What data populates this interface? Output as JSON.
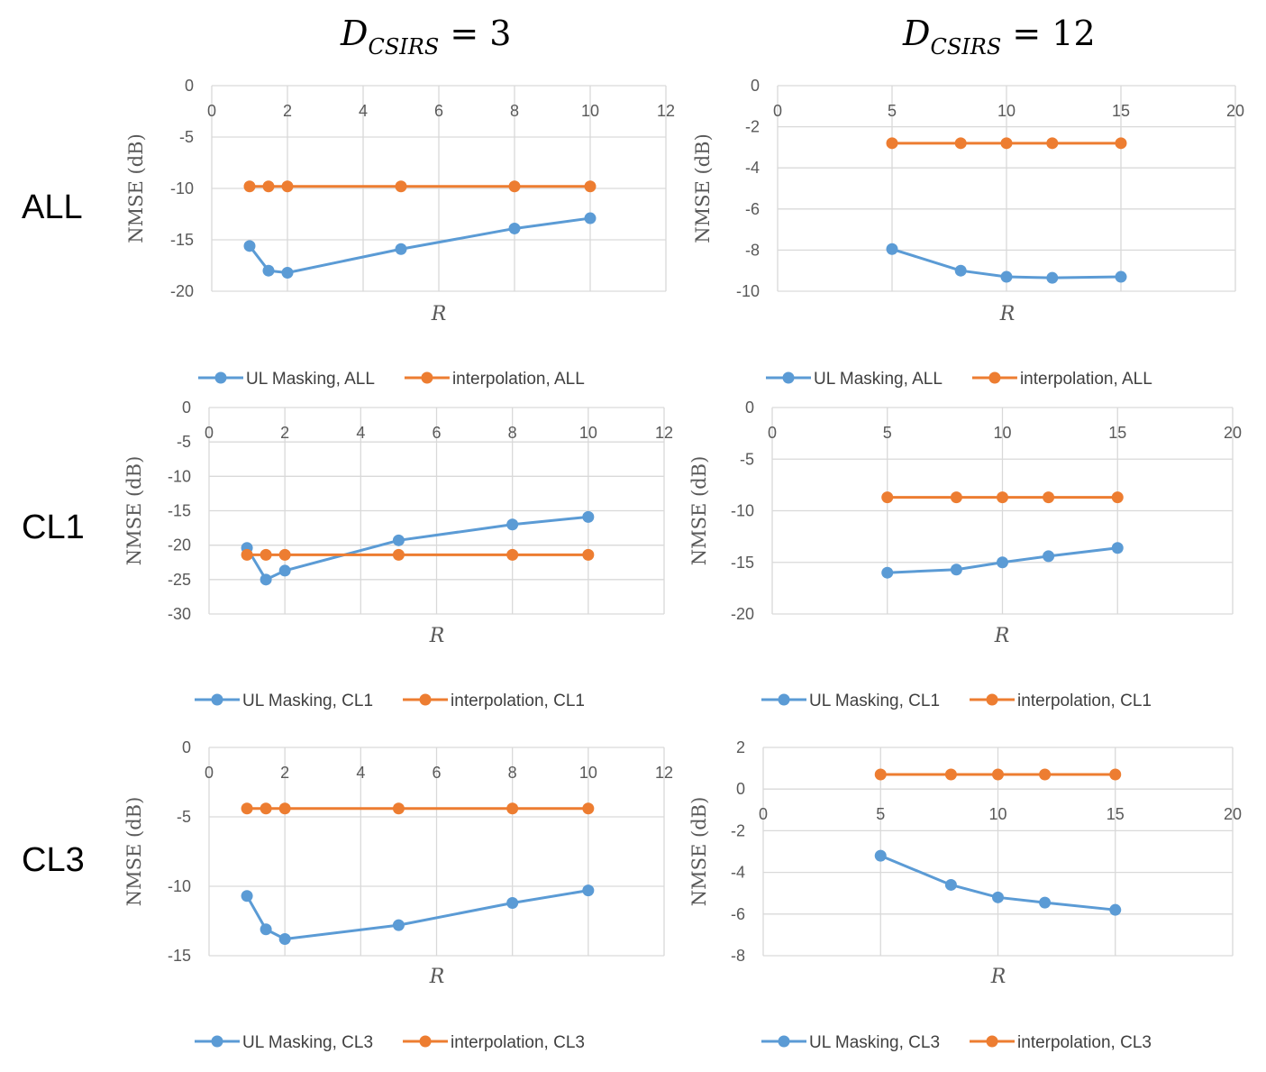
{
  "column_titles": [
    {
      "main": "D",
      "sub": "CSIRS",
      "rest": " = 3"
    },
    {
      "main": "D",
      "sub": "CSIRS",
      "rest": " = 12"
    }
  ],
  "row_labels": [
    "ALL",
    "CL1",
    "CL3"
  ],
  "colors": {
    "ul_masking": "#5B9BD5",
    "interpolation": "#ED7D31",
    "grid": "#D9D9D9",
    "tick": "#595959"
  },
  "chart_data": [
    {
      "id": "all-d3",
      "type": "line",
      "title": "",
      "xlabel": "R",
      "ylabel": "NMSE (dB)",
      "xlim": [
        0,
        12
      ],
      "ylim": [
        -20,
        0
      ],
      "xticks": [
        0,
        2,
        4,
        6,
        8,
        10,
        12
      ],
      "yticks": [
        0,
        -5,
        -10,
        -15,
        -20
      ],
      "series": [
        {
          "name": "UL Masking,  ALL",
          "color": "#5B9BD5",
          "x": [
            1,
            1.5,
            2,
            5,
            8,
            10
          ],
          "y": [
            -15.6,
            -18.0,
            -18.2,
            -15.9,
            -13.9,
            -12.9
          ]
        },
        {
          "name": "interpolation,  ALL",
          "color": "#ED7D31",
          "x": [
            1,
            1.5,
            2,
            5,
            8,
            10
          ],
          "y": [
            -9.8,
            -9.8,
            -9.8,
            -9.8,
            -9.8,
            -9.8
          ]
        }
      ]
    },
    {
      "id": "all-d12",
      "type": "line",
      "title": "",
      "xlabel": "R",
      "ylabel": "NMSE (dB)",
      "xlim": [
        0,
        20
      ],
      "ylim": [
        -10,
        0
      ],
      "xticks": [
        0,
        5,
        10,
        15,
        20
      ],
      "yticks": [
        0,
        -2,
        -4,
        -6,
        -8,
        -10
      ],
      "series": [
        {
          "name": "UL Masking,  ALL",
          "color": "#5B9BD5",
          "x": [
            5,
            8,
            10,
            12,
            15
          ],
          "y": [
            -7.95,
            -9.0,
            -9.3,
            -9.35,
            -9.3
          ]
        },
        {
          "name": "interpolation,  ALL",
          "color": "#ED7D31",
          "x": [
            5,
            8,
            10,
            12,
            15
          ],
          "y": [
            -2.8,
            -2.8,
            -2.8,
            -2.8,
            -2.8
          ]
        }
      ]
    },
    {
      "id": "cl1-d3",
      "type": "line",
      "title": "",
      "xlabel": "R",
      "ylabel": "NMSE (dB)",
      "xlim": [
        0,
        12
      ],
      "ylim": [
        -30,
        0
      ],
      "xticks": [
        0,
        2,
        4,
        6,
        8,
        10,
        12
      ],
      "yticks": [
        0,
        -5,
        -10,
        -15,
        -20,
        -25,
        -30
      ],
      "series": [
        {
          "name": "UL Masking,  CL1",
          "color": "#5B9BD5",
          "x": [
            1,
            1.5,
            2,
            5,
            8,
            10
          ],
          "y": [
            -20.4,
            -25.0,
            -23.7,
            -19.3,
            -17.0,
            -15.9
          ]
        },
        {
          "name": "interpolation,  CL1",
          "color": "#ED7D31",
          "x": [
            1,
            1.5,
            2,
            5,
            8,
            10
          ],
          "y": [
            -21.4,
            -21.4,
            -21.4,
            -21.4,
            -21.4,
            -21.4
          ]
        }
      ]
    },
    {
      "id": "cl1-d12",
      "type": "line",
      "title": "",
      "xlabel": "R",
      "ylabel": "NMSE (dB)",
      "xlim": [
        0,
        20
      ],
      "ylim": [
        -20,
        0
      ],
      "xticks": [
        0,
        5,
        10,
        15,
        20
      ],
      "yticks": [
        0,
        -5,
        -10,
        -15,
        -20
      ],
      "series": [
        {
          "name": "UL Masking,  CL1",
          "color": "#5B9BD5",
          "x": [
            5,
            8,
            10,
            12,
            15
          ],
          "y": [
            -16.0,
            -15.7,
            -15.0,
            -14.4,
            -13.6
          ]
        },
        {
          "name": "interpolation,  CL1",
          "color": "#ED7D31",
          "x": [
            5,
            8,
            10,
            12,
            15
          ],
          "y": [
            -8.7,
            -8.7,
            -8.7,
            -8.7,
            -8.7
          ]
        }
      ]
    },
    {
      "id": "cl3-d3",
      "type": "line",
      "title": "",
      "xlabel": "R",
      "ylabel": "NMSE (dB)",
      "xlim": [
        0,
        12
      ],
      "ylim": [
        -15,
        0
      ],
      "xticks": [
        0,
        2,
        4,
        6,
        8,
        10,
        12
      ],
      "yticks": [
        0,
        -5,
        -10,
        -15
      ],
      "series": [
        {
          "name": "UL Masking,  CL3",
          "color": "#5B9BD5",
          "x": [
            1,
            1.5,
            2,
            5,
            8,
            10
          ],
          "y": [
            -10.7,
            -13.1,
            -13.8,
            -12.8,
            -11.2,
            -10.3
          ]
        },
        {
          "name": "interpolation,  CL3",
          "color": "#ED7D31",
          "x": [
            1,
            1.5,
            2,
            5,
            8,
            10
          ],
          "y": [
            -4.4,
            -4.4,
            -4.4,
            -4.4,
            -4.4,
            -4.4
          ]
        }
      ]
    },
    {
      "id": "cl3-d12",
      "type": "line",
      "title": "",
      "xlabel": "R",
      "ylabel": "NMSE (dB)",
      "xlim": [
        0,
        20
      ],
      "ylim": [
        -8,
        2
      ],
      "xticks": [
        0,
        5,
        10,
        15,
        20
      ],
      "yticks": [
        2,
        0,
        -2,
        -4,
        -6,
        -8
      ],
      "series": [
        {
          "name": "UL Masking,  CL3",
          "color": "#5B9BD5",
          "x": [
            5,
            8,
            10,
            12,
            15
          ],
          "y": [
            -3.2,
            -4.6,
            -5.2,
            -5.45,
            -5.8
          ]
        },
        {
          "name": "interpolation,  CL3",
          "color": "#ED7D31",
          "x": [
            5,
            8,
            10,
            12,
            15
          ],
          "y": [
            0.7,
            0.7,
            0.7,
            0.7,
            0.7
          ]
        }
      ]
    }
  ]
}
